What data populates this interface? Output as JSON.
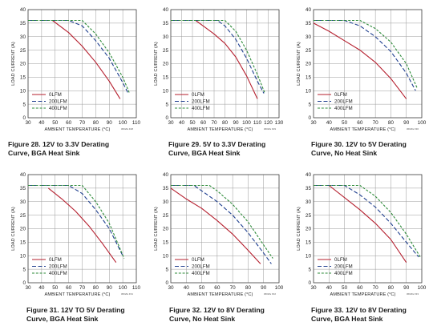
{
  "colors": {
    "0LFM": "#b51f2e",
    "200LFM": "#1f3f8f",
    "400LFM": "#2e8b3a",
    "grid": "#9a9a9a",
    "axis": "#333333"
  },
  "chart_data": [
    {
      "type": "line",
      "figure": "Figure 28. 12V to 3.3V Derating",
      "caption_line2": "Curve, BGA Heat Sink",
      "code": "3602fa F28",
      "xlabel": "AMBIENT TEMPERATURE (°C)",
      "ylabel": "LOAD CURRENT (A)",
      "xlim": [
        30,
        110
      ],
      "ylim": [
        0,
        40
      ],
      "xticks": [
        30,
        40,
        50,
        60,
        70,
        80,
        90,
        100,
        110
      ],
      "yticks": [
        0,
        5,
        10,
        15,
        20,
        25,
        30,
        35,
        40
      ],
      "grid": true,
      "legend": "bottom-left",
      "series": [
        {
          "name": "0LFM",
          "x": [
            48,
            60,
            70,
            80,
            90,
            98
          ],
          "y": [
            36,
            31.5,
            26.5,
            20.5,
            13.5,
            7
          ]
        },
        {
          "name": "200LFM",
          "x": [
            30,
            60,
            70,
            80,
            90,
            100,
            104
          ],
          "y": [
            36,
            36,
            34,
            28.5,
            22,
            13,
            9
          ]
        },
        {
          "name": "400LFM",
          "x": [
            30,
            70,
            80,
            90,
            100,
            105
          ],
          "y": [
            36,
            36,
            31,
            24,
            15,
            9
          ]
        }
      ]
    },
    {
      "type": "line",
      "figure": "Figure 29. 5V to 3.3V Derating",
      "caption_line2": "Curve, BGA Heat Sink",
      "code": "3602fa F29",
      "xlabel": "AMBIENT TEMPERATURE (°C)",
      "ylabel": "LOAD CURRENT (A)",
      "xlim": [
        30,
        130
      ],
      "ylim": [
        0,
        40
      ],
      "xticks": [
        30,
        40,
        50,
        60,
        70,
        80,
        90,
        100,
        110,
        120,
        130
      ],
      "yticks": [
        0,
        5,
        10,
        15,
        20,
        25,
        30,
        35,
        40
      ],
      "grid": true,
      "legend": "bottom-left",
      "series": [
        {
          "name": "0LFM",
          "x": [
            53,
            70,
            80,
            90,
            100,
            110
          ],
          "y": [
            36,
            31,
            27.5,
            22.5,
            15.5,
            7
          ]
        },
        {
          "name": "200LFM",
          "x": [
            30,
            73,
            80,
            90,
            100,
            110,
            116
          ],
          "y": [
            36,
            36,
            34,
            29,
            22,
            13.5,
            9
          ]
        },
        {
          "name": "400LFM",
          "x": [
            30,
            80,
            90,
            100,
            110,
            117
          ],
          "y": [
            36,
            36,
            32,
            25,
            16,
            9
          ]
        }
      ]
    },
    {
      "type": "line",
      "figure": "Figure 30. 12V to 5V Derating",
      "caption_line2": "Curve, No Heat Sink",
      "code": "3602fa F30",
      "xlabel": "AMBIENT TEMPERATURE (°C)",
      "ylabel": "LOAD CURRENT (A)",
      "xlim": [
        30,
        100
      ],
      "ylim": [
        0,
        40
      ],
      "xticks": [
        30,
        40,
        50,
        60,
        70,
        80,
        90,
        100
      ],
      "yticks": [
        0,
        5,
        10,
        15,
        20,
        25,
        30,
        35,
        40
      ],
      "grid": true,
      "legend": "bottom-left",
      "series": [
        {
          "name": "0LFM",
          "x": [
            30,
            40,
            50,
            60,
            70,
            80,
            90
          ],
          "y": [
            35,
            32,
            28.5,
            25,
            20.5,
            14.5,
            7
          ]
        },
        {
          "name": "200LFM",
          "x": [
            30,
            50,
            60,
            70,
            80,
            90,
            96
          ],
          "y": [
            36,
            36,
            34,
            30,
            24.5,
            16.5,
            10
          ]
        },
        {
          "name": "400LFM",
          "x": [
            30,
            60,
            70,
            80,
            90,
            97
          ],
          "y": [
            36,
            36,
            33,
            28,
            20,
            11
          ]
        }
      ]
    },
    {
      "type": "line",
      "figure": "Figure 31. 12V TO 5V Derating",
      "caption_line2": "Curve, BGA Heat Sink",
      "code": "3602fa F31",
      "xlabel": "AMBIENT TEMPERATURE (°C)",
      "ylabel": "LOAD CURRENT (A)",
      "xlim": [
        30,
        110
      ],
      "ylim": [
        0,
        40
      ],
      "xticks": [
        30,
        40,
        50,
        60,
        70,
        80,
        90,
        100,
        110
      ],
      "yticks": [
        0,
        5,
        10,
        15,
        20,
        25,
        30,
        35,
        40
      ],
      "grid": true,
      "legend": "bottom-left",
      "series": [
        {
          "name": "0LFM",
          "x": [
            45,
            55,
            65,
            75,
            85,
            95
          ],
          "y": [
            35,
            31,
            26.5,
            21,
            14.5,
            7.5
          ]
        },
        {
          "name": "200LFM",
          "x": [
            30,
            60,
            70,
            80,
            90,
            100
          ],
          "y": [
            36,
            36,
            33,
            27,
            20,
            10
          ]
        },
        {
          "name": "400LFM",
          "x": [
            30,
            70,
            80,
            90,
            101
          ],
          "y": [
            36,
            36,
            30,
            22,
            9
          ]
        }
      ]
    },
    {
      "type": "line",
      "figure": "Figure 32. 12V to 8V Derating",
      "caption_line2": "Curve, No Heat Sink",
      "code": "3602fa F32",
      "xlabel": "AMBIENT TEMPERATURE (°C)",
      "ylabel": "LOAD CURRENT (A)",
      "xlim": [
        30,
        100
      ],
      "ylim": [
        0,
        40
      ],
      "xticks": [
        30,
        40,
        50,
        60,
        70,
        80,
        90,
        100
      ],
      "yticks": [
        0,
        5,
        10,
        15,
        20,
        25,
        30,
        35,
        40
      ],
      "grid": true,
      "legend": "bottom-left",
      "series": [
        {
          "name": "0LFM",
          "x": [
            30,
            40,
            50,
            60,
            70,
            80,
            88
          ],
          "y": [
            35,
            31,
            27.5,
            23,
            18,
            12,
            7
          ]
        },
        {
          "name": "200LFM",
          "x": [
            30,
            45,
            50,
            60,
            70,
            80,
            90,
            95
          ],
          "y": [
            36,
            36,
            34,
            30,
            25,
            18.5,
            11,
            7
          ]
        },
        {
          "name": "400LFM",
          "x": [
            30,
            55,
            60,
            70,
            80,
            90,
            96
          ],
          "y": [
            36,
            36,
            34,
            29,
            22.5,
            14,
            9
          ]
        }
      ]
    },
    {
      "type": "line",
      "figure": "Figure 33. 12V to 8V Derating",
      "caption_line2": "Curve, BGA Heat Sink",
      "code": "3602fa F33",
      "xlabel": "AMBIENT TEMPERATURE (°C)",
      "ylabel": "LOAD CURRENT (A)",
      "xlim": [
        30,
        100
      ],
      "ylim": [
        0,
        40
      ],
      "xticks": [
        30,
        40,
        50,
        60,
        70,
        80,
        90,
        100
      ],
      "yticks": [
        0,
        5,
        10,
        15,
        20,
        25,
        30,
        35,
        40
      ],
      "grid": true,
      "legend": "bottom-left",
      "series": [
        {
          "name": "0LFM",
          "x": [
            40,
            50,
            60,
            70,
            80,
            90
          ],
          "y": [
            36,
            31.5,
            27,
            22,
            16,
            7.5
          ]
        },
        {
          "name": "200LFM",
          "x": [
            30,
            50,
            60,
            70,
            80,
            90,
            98
          ],
          "y": [
            36,
            36,
            32.5,
            28,
            22,
            15,
            9.5
          ]
        },
        {
          "name": "400LFM",
          "x": [
            30,
            60,
            70,
            80,
            90,
            99
          ],
          "y": [
            36,
            36,
            32,
            26,
            18,
            9.5
          ]
        }
      ]
    }
  ]
}
